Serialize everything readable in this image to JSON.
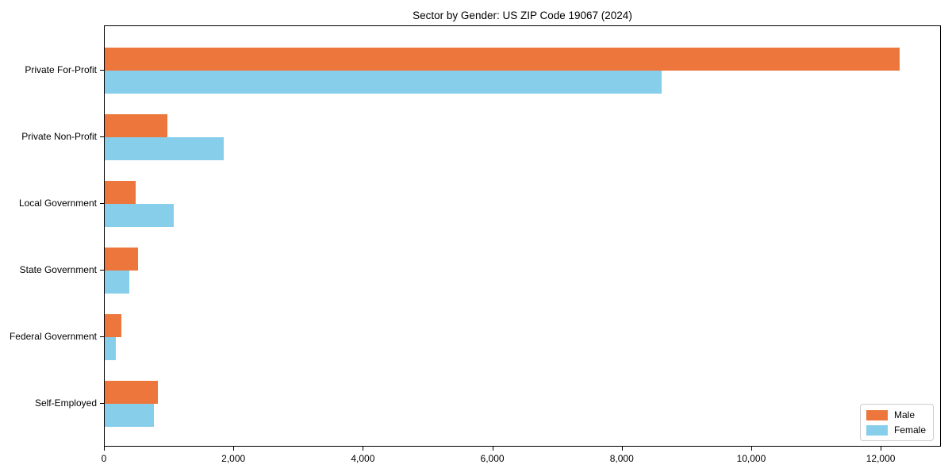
{
  "title": "Sector by Gender: US ZIP Code 19067 (2024)",
  "chart_data": {
    "type": "bar",
    "orientation": "horizontal",
    "title": "Sector by Gender: US ZIP Code 19067 (2024)",
    "xlabel": "",
    "ylabel": "",
    "categories": [
      "Private For-Profit",
      "Private Non-Profit",
      "Local Government",
      "State Government",
      "Federal Government",
      "Self-Employed"
    ],
    "series": [
      {
        "name": "Male",
        "color": "#ec763c",
        "values": [
          12300,
          970,
          480,
          510,
          260,
          820
        ]
      },
      {
        "name": "Female",
        "color": "#87ceeb",
        "values": [
          8620,
          1840,
          1070,
          380,
          170,
          760
        ]
      }
    ],
    "xlim": [
      0,
      12930
    ],
    "xticks": [
      0,
      2000,
      4000,
      6000,
      8000,
      10000,
      12000
    ],
    "xtick_labels": [
      "0",
      "2,000",
      "4,000",
      "6,000",
      "8,000",
      "10,000",
      "12,000"
    ],
    "grid": false,
    "legend_position": "lower right"
  },
  "colors": {
    "male": "#ec763c",
    "female": "#87ceeb",
    "axis": "#000000",
    "legend_border": "#cccccc",
    "background": "#ffffff"
  }
}
